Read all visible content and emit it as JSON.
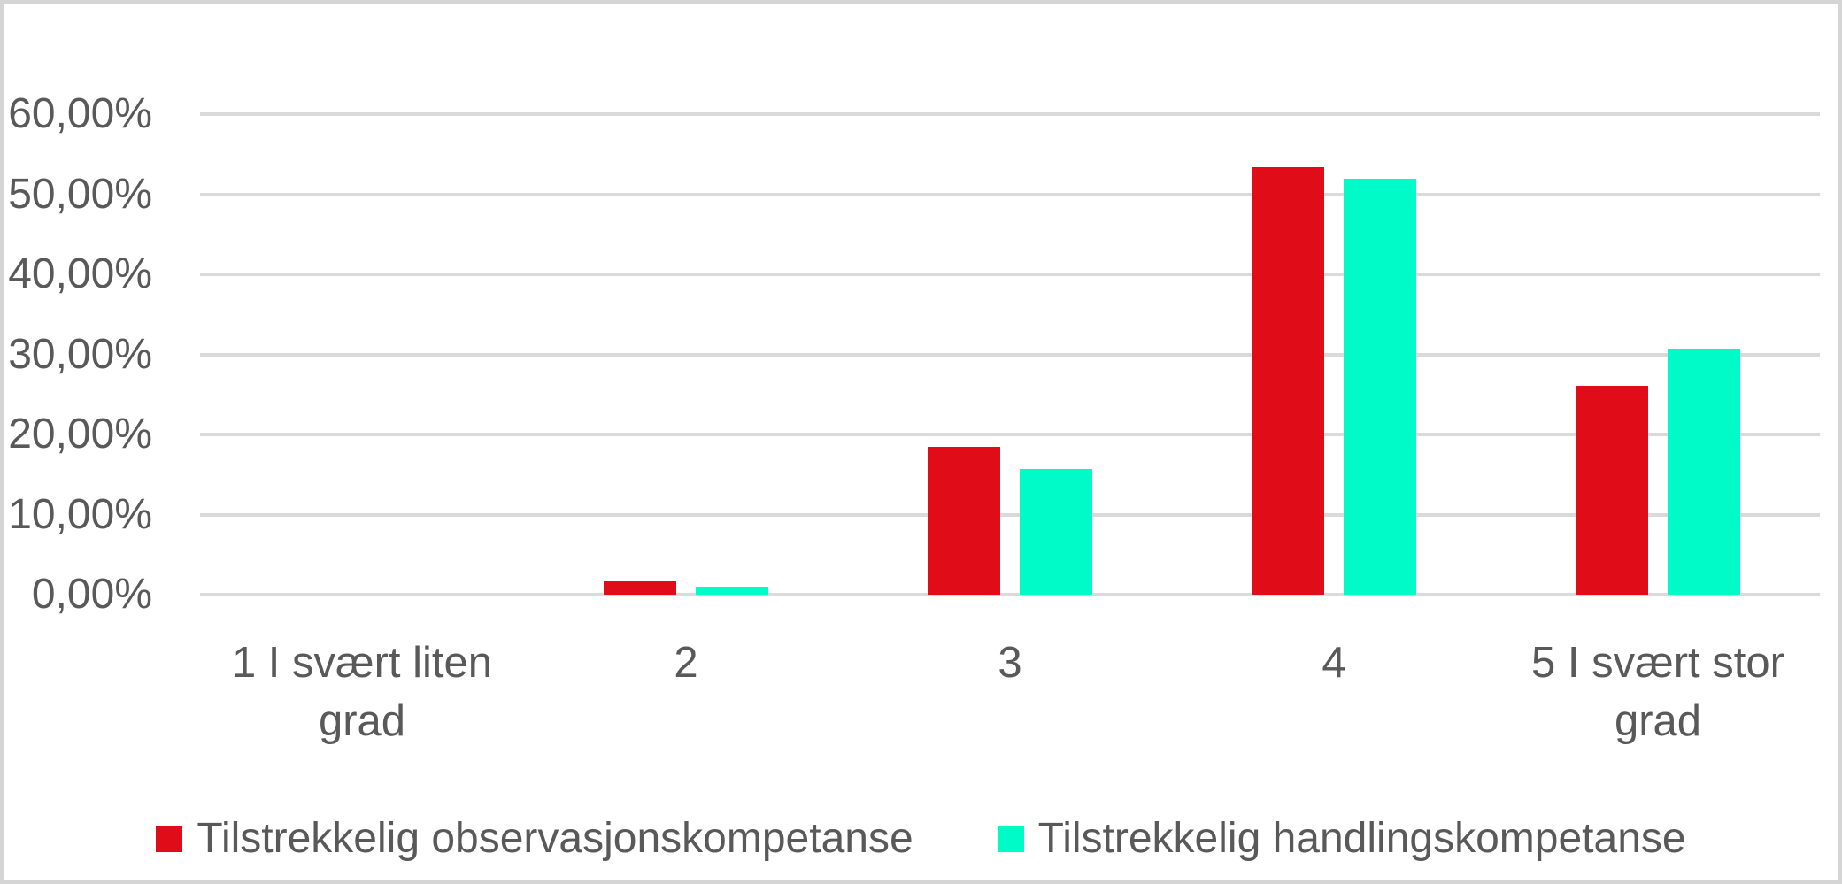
{
  "chart_data": {
    "type": "bar",
    "title": "",
    "xlabel": "",
    "ylabel": "",
    "categories": [
      "1 I svært liten grad",
      "2",
      "3",
      "4",
      "5 I svært stor grad"
    ],
    "series": [
      {
        "name": "Tilstrekkelig observasjonskompetanse",
        "color": "#E00C18",
        "values": [
          0,
          1.7,
          18.4,
          53.4,
          26.1
        ]
      },
      {
        "name": "Tilstrekkelig handlingskompetanse",
        "color": "#00FBC8",
        "values": [
          0,
          1.0,
          15.7,
          51.9,
          30.7
        ]
      }
    ],
    "ylim": [
      0,
      60
    ],
    "y_tick_step": 10,
    "y_tick_labels": [
      "0,00%",
      "10,00%",
      "20,00%",
      "30,00%",
      "40,00%",
      "50,00%",
      "60,00%"
    ],
    "value_format": "percent-comma-2dp",
    "grid": true,
    "legend_position": "bottom"
  },
  "colors": {
    "background": "#FFFFFF",
    "chart_border": "#D5D5D5",
    "grid_line": "#DADADA",
    "axis_text": "#595959",
    "series_1": "#E00C18",
    "series_2": "#00FBC8"
  }
}
